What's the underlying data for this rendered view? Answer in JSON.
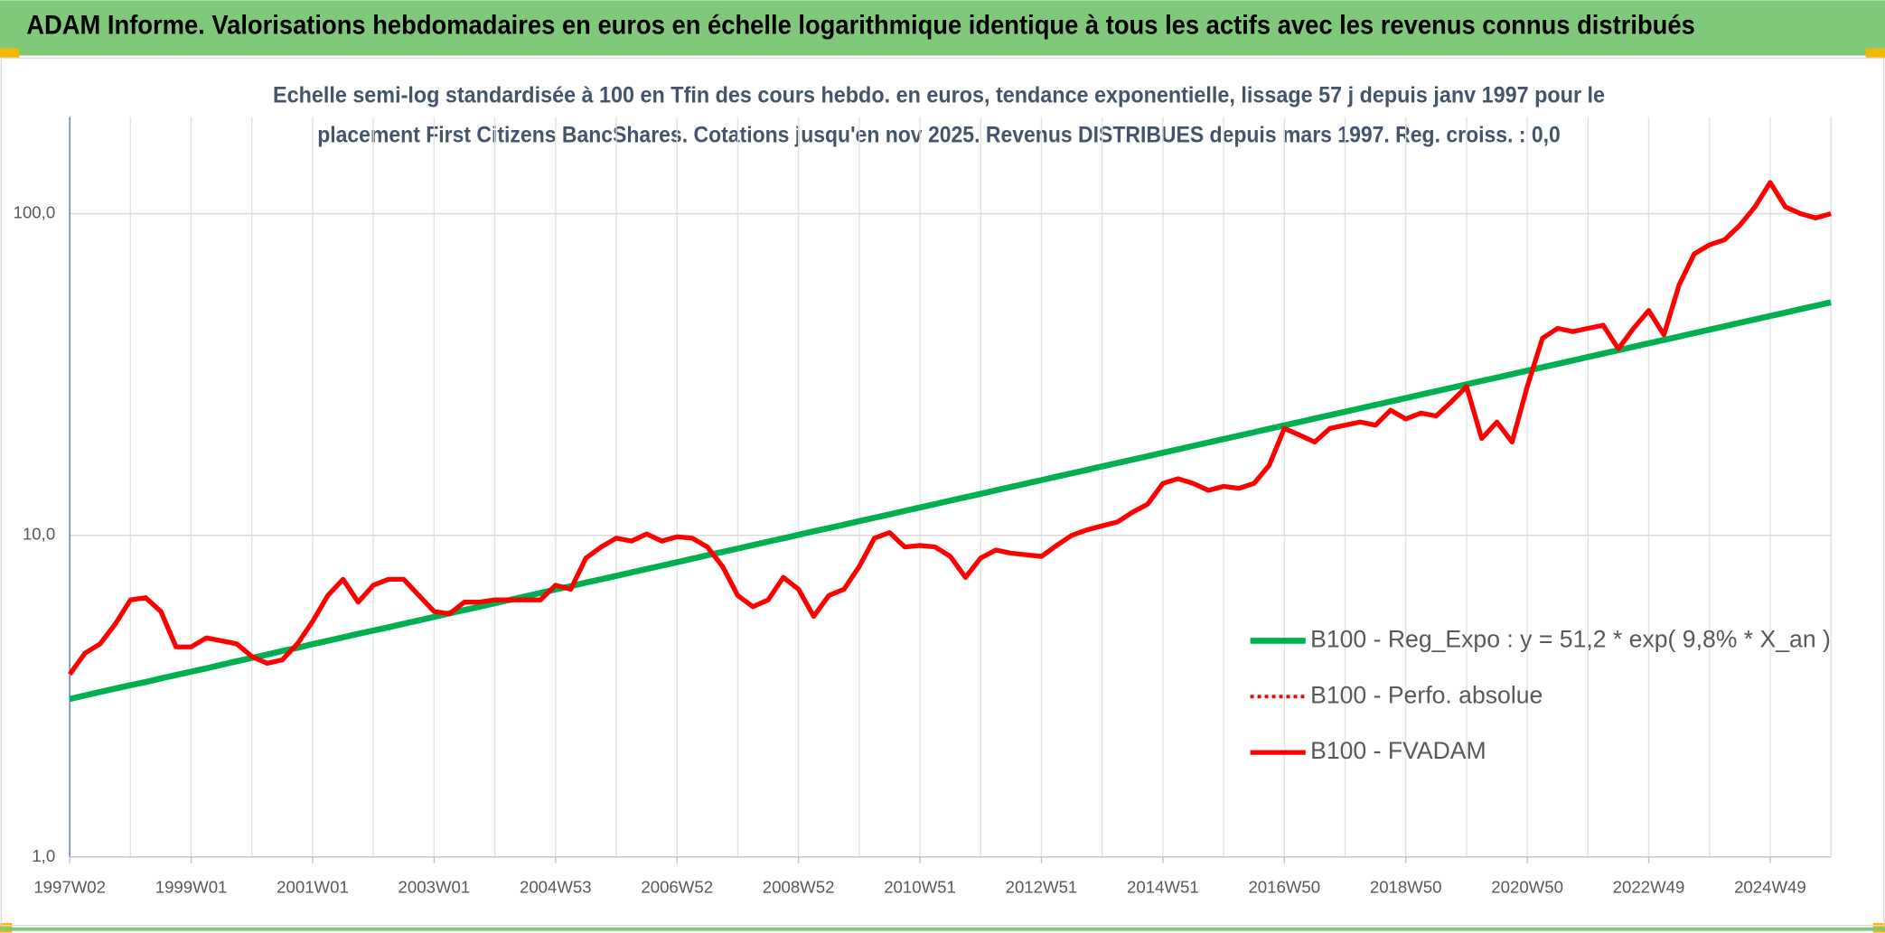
{
  "banner": "ADAM Informe. Valorisations hebdomadaires en euros en échelle logarithmique identique à tous les actifs avec les revenus connus distribués",
  "chart_data": {
    "type": "line",
    "title": [
      "Echelle semi-log standardisée à 100 en Tfin des cours hebdo. en euros, tendance exponentielle, lissage 57 j depuis janv 1997 pour le",
      "placement First Citizens BancShares. Cotations jusqu'en nov 2025. Revenus DISTRIBUES depuis mars 1997. Reg. croiss. : 0,0"
    ],
    "categories": [
      "1997W02",
      null,
      null,
      null,
      null,
      null,
      null,
      null,
      "1999W01",
      null,
      null,
      null,
      null,
      null,
      null,
      null,
      "2001W01",
      null,
      null,
      null,
      null,
      null,
      null,
      null,
      "2003W01",
      null,
      null,
      null,
      null,
      null,
      null,
      null,
      "2004W53",
      null,
      null,
      null,
      null,
      null,
      null,
      null,
      "2006W52",
      null,
      null,
      null,
      null,
      null,
      null,
      null,
      "2008W52",
      null,
      null,
      null,
      null,
      null,
      null,
      null,
      "2010W51",
      null,
      null,
      null,
      null,
      null,
      null,
      null,
      "2012W51",
      null,
      null,
      null,
      null,
      null,
      null,
      null,
      "2014W51",
      null,
      null,
      null,
      null,
      null,
      null,
      null,
      "2016W50",
      null,
      null,
      null,
      null,
      null,
      null,
      null,
      "2018W50",
      null,
      null,
      null,
      null,
      null,
      null,
      null,
      "2020W50",
      null,
      null,
      null,
      null,
      null,
      null,
      null,
      "2022W49",
      null,
      null,
      null,
      null,
      null,
      null,
      null,
      "2024W49",
      null,
      null,
      null,
      null
    ],
    "series": [
      {
        "name": "B100 - Reg_Expo : y = 51,2 * exp( 9,8% *  X_an )",
        "color": "#00b050",
        "style": "solid",
        "values": [
          3.1,
          3.18,
          3.26,
          3.34,
          3.42,
          3.5,
          3.59,
          3.68,
          3.77,
          3.86,
          3.96,
          4.06,
          4.16,
          4.26,
          4.37,
          4.47,
          4.59,
          4.7,
          4.82,
          4.94,
          5.06,
          5.18,
          5.31,
          5.44,
          5.58,
          5.72,
          5.86,
          6.0,
          6.15,
          6.3,
          6.46,
          6.62,
          6.79,
          6.95,
          7.13,
          7.3,
          7.48,
          7.67,
          7.86,
          8.05,
          8.25,
          8.46,
          8.67,
          8.88,
          9.1,
          9.33,
          9.56,
          9.79,
          10.04,
          10.29,
          10.54,
          10.8,
          11.07,
          11.34,
          11.62,
          11.91,
          12.21,
          12.51,
          12.82,
          13.14,
          13.46,
          13.8,
          14.14,
          14.49,
          14.85,
          15.22,
          15.59,
          15.98,
          16.38,
          16.78,
          17.2,
          17.62,
          18.06,
          18.51,
          18.97,
          19.44,
          19.92,
          20.41,
          20.92,
          21.44,
          21.97,
          22.51,
          23.07,
          23.64,
          24.23,
          24.83,
          25.44,
          26.07,
          26.72,
          27.38,
          28.06,
          28.76,
          29.47,
          30.2,
          30.95,
          31.71,
          32.5,
          33.3,
          34.13,
          34.97,
          35.84,
          36.73,
          37.64,
          38.57,
          39.53,
          40.51,
          41.51,
          42.54,
          43.59,
          44.67,
          45.78,
          46.91,
          48.08,
          49.27,
          50.49,
          51.74,
          53.02
        ]
      },
      {
        "name": "B100 - Perfo. absolue",
        "color": "#ff0000",
        "style": "dotted",
        "values": [
          null,
          null,
          null,
          null,
          null,
          null,
          null,
          null,
          null,
          null,
          null,
          null,
          null,
          null,
          null,
          null,
          null,
          null,
          null,
          null,
          null,
          null,
          null,
          null,
          null,
          null,
          null,
          null,
          null,
          null,
          null,
          null,
          null,
          null,
          null,
          null,
          null,
          null,
          null,
          null,
          null,
          null,
          null,
          null,
          null,
          null,
          null,
          null,
          null,
          null,
          null,
          null,
          null,
          null,
          null,
          null,
          null,
          null,
          null,
          null,
          null,
          null,
          null,
          null,
          null,
          null,
          null,
          null,
          null,
          null,
          null,
          null,
          null,
          null,
          null,
          null,
          null,
          null,
          null,
          null,
          null,
          null,
          null,
          null,
          null,
          null,
          null,
          null,
          null,
          null,
          null,
          null,
          null,
          null,
          null,
          null,
          null,
          null,
          null,
          null,
          null,
          null,
          null,
          null,
          null,
          null,
          null,
          null,
          null,
          null,
          null,
          null,
          null,
          null,
          null,
          null,
          null
        ]
      },
      {
        "name": "B100 - FVADAM",
        "color": "#ff0000",
        "style": "solid",
        "values": [
          3.7,
          4.3,
          4.6,
          5.3,
          6.3,
          6.4,
          5.8,
          4.5,
          4.5,
          4.8,
          4.7,
          4.6,
          4.2,
          4.0,
          4.1,
          4.6,
          5.4,
          6.5,
          7.3,
          6.2,
          7.0,
          7.3,
          7.3,
          6.5,
          5.8,
          5.7,
          6.2,
          6.2,
          6.3,
          6.3,
          6.3,
          6.3,
          7.0,
          6.8,
          8.5,
          9.2,
          9.8,
          9.6,
          10.1,
          9.6,
          9.9,
          9.8,
          9.2,
          8.0,
          6.5,
          6.0,
          6.3,
          7.4,
          6.8,
          5.6,
          6.5,
          6.8,
          8.0,
          9.8,
          10.2,
          9.2,
          9.3,
          9.2,
          8.6,
          7.4,
          8.5,
          9.0,
          8.8,
          8.7,
          8.6,
          9.3,
          10.0,
          10.4,
          10.7,
          11.0,
          11.8,
          12.5,
          14.5,
          15.0,
          14.5,
          13.8,
          14.2,
          14.0,
          14.5,
          16.5,
          21.5,
          20.5,
          19.5,
          21.5,
          22.0,
          22.5,
          22.0,
          24.5,
          23.0,
          24.0,
          23.5,
          26.0,
          29.0,
          20.0,
          22.5,
          19.5,
          29.0,
          41.0,
          44.0,
          43.0,
          44.0,
          45.0,
          38.0,
          44.0,
          50.0,
          42.0,
          60.0,
          75.0,
          80.0,
          83.0,
          92.0,
          105.0,
          125.0,
          105.0,
          100.0,
          97.0,
          100.0
        ]
      }
    ],
    "ylim": [
      1,
      200
    ],
    "yticks": [
      {
        "value": 1,
        "label": "1,0"
      },
      {
        "value": 10,
        "label": "10,0"
      },
      {
        "value": 100,
        "label": "100,0"
      }
    ],
    "log_y": true,
    "grid": true,
    "legend": "lower right"
  }
}
